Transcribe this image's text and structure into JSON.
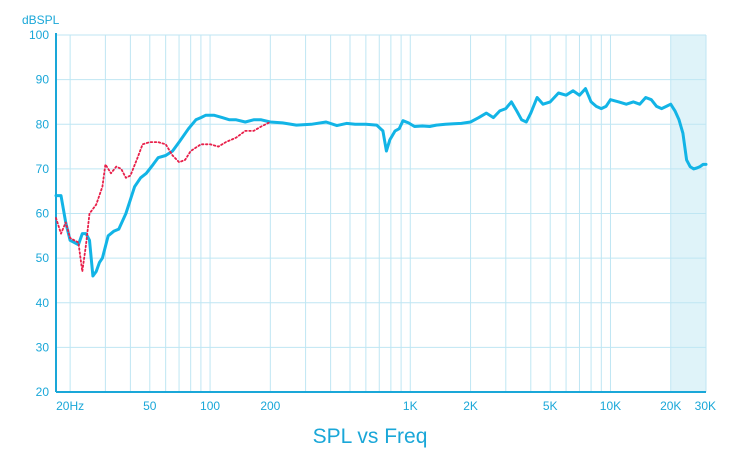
{
  "chart_data": {
    "type": "line",
    "title": "SPL vs Freq",
    "ylabel": "dBSPL",
    "xlabel": "",
    "x_scale": "log",
    "xlim": [
      17,
      30000
    ],
    "ylim": [
      20,
      100
    ],
    "grid": true,
    "y_ticks": [
      20,
      30,
      40,
      50,
      60,
      70,
      80,
      90,
      100
    ],
    "x_ticks": [
      {
        "value": 20,
        "label": "20Hz"
      },
      {
        "value": 50,
        "label": "50"
      },
      {
        "value": 100,
        "label": "100"
      },
      {
        "value": 200,
        "label": "200"
      },
      {
        "value": 1000,
        "label": "1K"
      },
      {
        "value": 2000,
        "label": "2K"
      },
      {
        "value": 5000,
        "label": "5K"
      },
      {
        "value": 10000,
        "label": "10K"
      },
      {
        "value": 20000,
        "label": "20K"
      },
      {
        "value": 30000,
        "label": "30K"
      }
    ],
    "highlight_band": {
      "from": 20000,
      "to": 30000,
      "color": "#dff3f9"
    },
    "colors": {
      "axis": "#1aa7d8",
      "grid": "#bfe6f3",
      "series_solid": "#12b4e6",
      "series_dotted": "#e8204a"
    },
    "series": [
      {
        "style": "solid",
        "points": [
          [
            17,
            64
          ],
          [
            18,
            64
          ],
          [
            19,
            58
          ],
          [
            20,
            54
          ],
          [
            21,
            53.5
          ],
          [
            22,
            53
          ],
          [
            23,
            55.5
          ],
          [
            24,
            55.5
          ],
          [
            25,
            54
          ],
          [
            26,
            46
          ],
          [
            27,
            47
          ],
          [
            28,
            49
          ],
          [
            29,
            50
          ],
          [
            31,
            55
          ],
          [
            33,
            56
          ],
          [
            35,
            56.5
          ],
          [
            38,
            60
          ],
          [
            42,
            66
          ],
          [
            45,
            68
          ],
          [
            48,
            69
          ],
          [
            52,
            71
          ],
          [
            55,
            72.5
          ],
          [
            60,
            73
          ],
          [
            65,
            74
          ],
          [
            70,
            76
          ],
          [
            78,
            79
          ],
          [
            85,
            81
          ],
          [
            90,
            81.5
          ],
          [
            95,
            82
          ],
          [
            105,
            82
          ],
          [
            115,
            81.5
          ],
          [
            125,
            81
          ],
          [
            135,
            81
          ],
          [
            150,
            80.5
          ],
          [
            165,
            81
          ],
          [
            180,
            81
          ],
          [
            200,
            80.5
          ],
          [
            230,
            80.3
          ],
          [
            270,
            79.8
          ],
          [
            320,
            80
          ],
          [
            380,
            80.5
          ],
          [
            430,
            79.7
          ],
          [
            480,
            80.2
          ],
          [
            530,
            80
          ],
          [
            600,
            80
          ],
          [
            680,
            79.8
          ],
          [
            730,
            78.5
          ],
          [
            760,
            74
          ],
          [
            790,
            76.5
          ],
          [
            840,
            78.5
          ],
          [
            880,
            79
          ],
          [
            920,
            80.8
          ],
          [
            980,
            80.3
          ],
          [
            1050,
            79.5
          ],
          [
            1150,
            79.6
          ],
          [
            1250,
            79.5
          ],
          [
            1350,
            79.8
          ],
          [
            1500,
            80
          ],
          [
            1650,
            80.1
          ],
          [
            1800,
            80.2
          ],
          [
            2000,
            80.5
          ],
          [
            2200,
            81.5
          ],
          [
            2400,
            82.5
          ],
          [
            2600,
            81.5
          ],
          [
            2800,
            83
          ],
          [
            3000,
            83.5
          ],
          [
            3200,
            85
          ],
          [
            3400,
            83
          ],
          [
            3600,
            81
          ],
          [
            3800,
            80.5
          ],
          [
            4000,
            82.5
          ],
          [
            4300,
            86
          ],
          [
            4600,
            84.5
          ],
          [
            5000,
            85
          ],
          [
            5500,
            87
          ],
          [
            6000,
            86.5
          ],
          [
            6500,
            87.5
          ],
          [
            7000,
            86.5
          ],
          [
            7500,
            88
          ],
          [
            8000,
            85
          ],
          [
            8500,
            84
          ],
          [
            9000,
            83.5
          ],
          [
            9500,
            84
          ],
          [
            10000,
            85.5
          ],
          [
            11000,
            85
          ],
          [
            12000,
            84.5
          ],
          [
            13000,
            85
          ],
          [
            14000,
            84.5
          ],
          [
            15000,
            86
          ],
          [
            16000,
            85.5
          ],
          [
            17000,
            84
          ],
          [
            18000,
            83.5
          ],
          [
            19000,
            84
          ],
          [
            20000,
            84.5
          ],
          [
            21000,
            83
          ],
          [
            22000,
            81
          ],
          [
            23000,
            78
          ],
          [
            24000,
            72
          ],
          [
            25000,
            70.5
          ],
          [
            26000,
            70
          ],
          [
            27000,
            70.2
          ],
          [
            28000,
            70.5
          ],
          [
            29000,
            71
          ],
          [
            30000,
            71
          ]
        ]
      },
      {
        "style": "dotted",
        "points": [
          [
            17,
            59
          ],
          [
            18,
            55.5
          ],
          [
            19,
            58
          ],
          [
            20,
            54.5
          ],
          [
            21,
            54
          ],
          [
            22,
            53.5
          ],
          [
            23,
            47
          ],
          [
            24,
            53
          ],
          [
            25,
            60
          ],
          [
            27,
            62
          ],
          [
            29,
            66
          ],
          [
            30,
            71
          ],
          [
            32,
            69
          ],
          [
            34,
            70.5
          ],
          [
            36,
            70
          ],
          [
            38,
            68
          ],
          [
            40,
            68.5
          ],
          [
            43,
            72
          ],
          [
            46,
            75.5
          ],
          [
            50,
            76
          ],
          [
            55,
            76
          ],
          [
            60,
            75.5
          ],
          [
            65,
            73
          ],
          [
            70,
            71.5
          ],
          [
            75,
            72
          ],
          [
            80,
            74
          ],
          [
            90,
            75.5
          ],
          [
            100,
            75.5
          ],
          [
            110,
            75
          ],
          [
            120,
            76
          ],
          [
            135,
            77
          ],
          [
            150,
            78.5
          ],
          [
            165,
            78.5
          ],
          [
            180,
            79.5
          ],
          [
            200,
            80.5
          ]
        ]
      }
    ]
  }
}
